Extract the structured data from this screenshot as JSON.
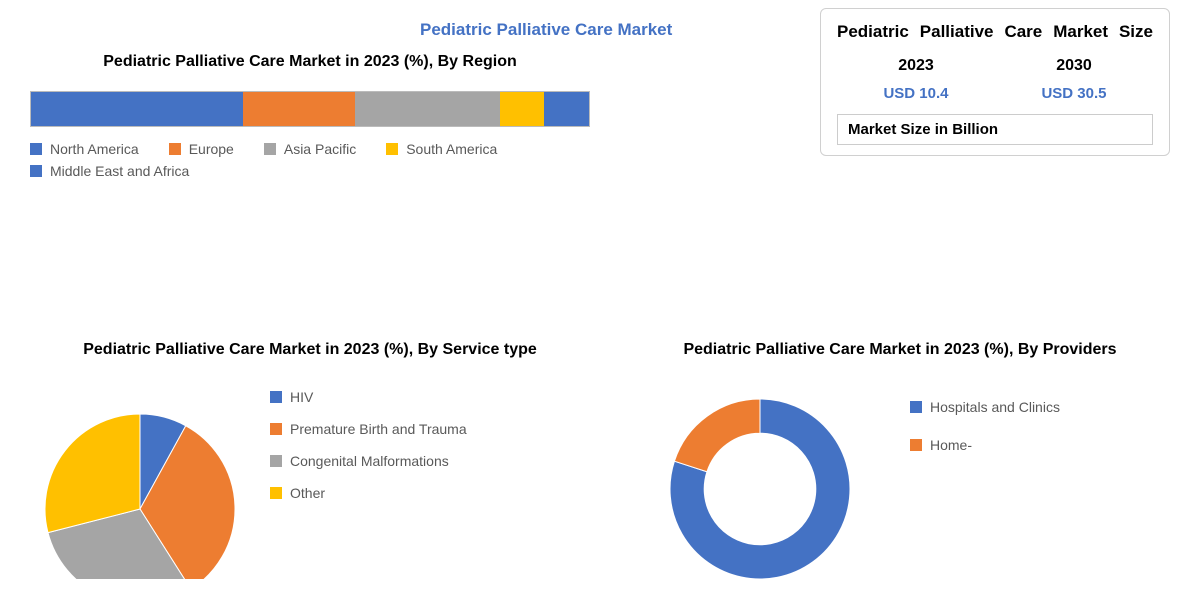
{
  "colors": {
    "blue": "#4472c4",
    "orange": "#ed7d31",
    "gray": "#a5a5a5",
    "yellow": "#ffc000",
    "darkblue": "#5b9bd5",
    "midblue": "#4472c4",
    "text": "#000000",
    "legend_text": "#595959",
    "border": "#d0d0d0"
  },
  "main_title": "Pediatric Palliative Care Market",
  "size_box": {
    "title": "Pediatric Palliative Care Market Size",
    "years": [
      "2023",
      "2030"
    ],
    "values": [
      "USD 10.4",
      "USD 30.5"
    ],
    "footer": "Market Size in Billion"
  },
  "region_chart": {
    "title": "Pediatric Palliative Care Market in 2023 (%), By Region",
    "type": "stacked-bar",
    "segments": [
      {
        "label": "North America",
        "value": 38,
        "color": "#4472c4"
      },
      {
        "label": "Europe",
        "value": 20,
        "color": "#ed7d31"
      },
      {
        "label": "Asia Pacific",
        "value": 26,
        "color": "#a5a5a5"
      },
      {
        "label": "South America",
        "value": 8,
        "color": "#ffc000"
      },
      {
        "label": "Middle East and Africa",
        "value": 8,
        "color": "#4472c4"
      }
    ]
  },
  "service_chart": {
    "title": "Pediatric Palliative Care Market in 2023 (%), By Service type",
    "type": "pie",
    "slices": [
      {
        "label": "HIV",
        "value": 8,
        "color": "#4472c4"
      },
      {
        "label": "Premature Birth and Trauma",
        "value": 33,
        "color": "#ed7d31"
      },
      {
        "label": "Congenital Malformations",
        "value": 30,
        "color": "#a5a5a5"
      },
      {
        "label": "Other",
        "value": 29,
        "color": "#ffc000"
      }
    ],
    "start_angle": -90
  },
  "providers_chart": {
    "title": "Pediatric Palliative Care Market in 2023 (%), By Providers",
    "type": "donut",
    "inner_ratio": 0.62,
    "slices": [
      {
        "label": "Hospitals and Clinics",
        "value": 80,
        "color": "#4472c4"
      },
      {
        "label": "Home-",
        "value": 20,
        "color": "#ed7d31"
      }
    ],
    "start_angle": -90
  }
}
